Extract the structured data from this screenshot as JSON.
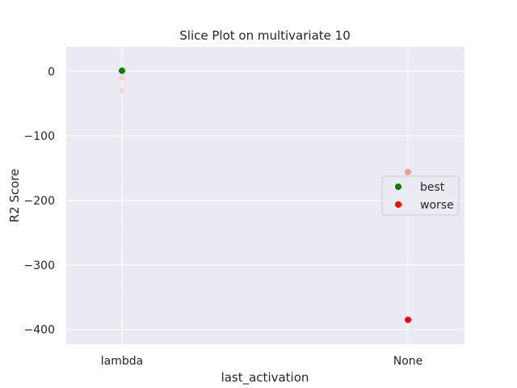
{
  "chart_data": {
    "type": "scatter",
    "title": "Slice Plot on multivariate 10",
    "xlabel": "last_activation",
    "ylabel": "R2 Score",
    "categories": [
      "lambda",
      "None"
    ],
    "ylim": [
      -423,
      38
    ],
    "yticks": [
      0,
      -100,
      -200,
      -300,
      -400
    ],
    "ytick_labels": [
      "0",
      "−100",
      "−200",
      "−300",
      "−400"
    ],
    "grid": true,
    "legend_position": "center-right",
    "legend": [
      {
        "label": "best",
        "color": "#008000"
      },
      {
        "label": "worse",
        "color": "#ff0000"
      }
    ],
    "points": [
      {
        "x": "lambda",
        "y": -30,
        "color": "#f3d9dc"
      },
      {
        "x": "lambda",
        "y": -10,
        "color": "#f3d9dc"
      },
      {
        "x": "lambda",
        "y": 1,
        "color": "#008000"
      },
      {
        "x": "None",
        "y": -156,
        "color": "#ee9a9e"
      },
      {
        "x": "None",
        "y": -385,
        "color": "#ff0000"
      }
    ],
    "colors": {
      "background": "#eaeaf2",
      "grid": "#ffffff",
      "text": "#262626"
    }
  }
}
